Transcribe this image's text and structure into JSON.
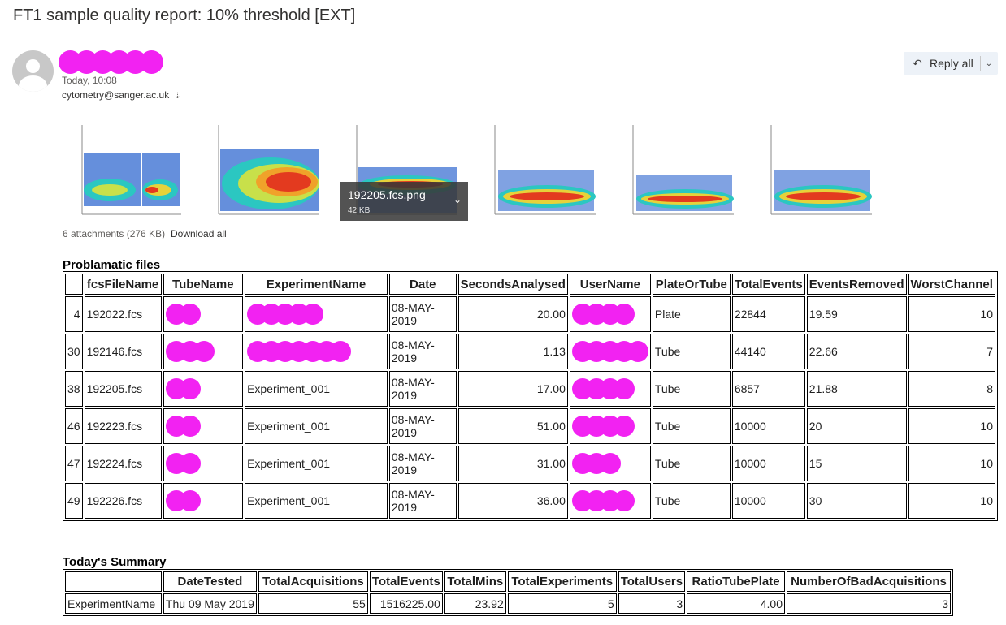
{
  "subject": "FT1 sample quality report: 10% threshold [EXT]",
  "sender": {
    "time": "Today, 10:08",
    "to": "cytometry@sanger.ac.uk"
  },
  "reply": {
    "label": "Reply all"
  },
  "attachments": {
    "hovered": {
      "name": "192205.fcs.png",
      "size": "42 KB"
    },
    "count_label": "6 attachments (276 KB)",
    "download_all": "Download all"
  },
  "problem_table": {
    "title": "Problamatic files",
    "headers": [
      "",
      "fcsFileName",
      "TubeName",
      "ExperimentName",
      "Date",
      "SecondsAnalysed",
      "UserName",
      "PlateOrTube",
      "TotalEvents",
      "EventsRemoved",
      "WorstChannel"
    ],
    "rows": [
      {
        "idx": "4",
        "file": "192022.fcs",
        "exp": "",
        "date": "08-MAY-2019",
        "secs": "20.00",
        "pt": "Plate",
        "total": "22844",
        "removed": "19.59",
        "worst": "10"
      },
      {
        "idx": "30",
        "file": "192146.fcs",
        "exp": "",
        "date": "08-MAY-2019",
        "secs": "1.13",
        "pt": "Tube",
        "total": "44140",
        "removed": "22.66",
        "worst": "7"
      },
      {
        "idx": "38",
        "file": "192205.fcs",
        "exp": "Experiment_001",
        "date": "08-MAY-2019",
        "secs": "17.00",
        "pt": "Tube",
        "total": "6857",
        "removed": "21.88",
        "worst": "8"
      },
      {
        "idx": "46",
        "file": "192223.fcs",
        "exp": "Experiment_001",
        "date": "08-MAY-2019",
        "secs": "51.00",
        "pt": "Tube",
        "total": "10000",
        "removed": "20",
        "worst": "10"
      },
      {
        "idx": "47",
        "file": "192224.fcs",
        "exp": "Experiment_001",
        "date": "08-MAY-2019",
        "secs": "31.00",
        "pt": "Tube",
        "total": "10000",
        "removed": "15",
        "worst": "10"
      },
      {
        "idx": "49",
        "file": "192226.fcs",
        "exp": "Experiment_001",
        "date": "08-MAY-2019",
        "secs": "36.00",
        "pt": "Tube",
        "total": "10000",
        "removed": "30",
        "worst": "10"
      }
    ]
  },
  "summary_table": {
    "title": "Today's Summary",
    "headers": [
      "",
      "DateTested",
      "TotalAcquisitions",
      "TotalEvents",
      "TotalMins",
      "TotalExperiments",
      "TotalUsers",
      "RatioTubePlate",
      "NumberOfBadAcquisitions"
    ],
    "row": [
      "ExperimentName",
      "Thu 09 May 2019",
      "55",
      "1516225.00",
      "23.92",
      "5",
      "3",
      "4.00",
      "3"
    ]
  }
}
